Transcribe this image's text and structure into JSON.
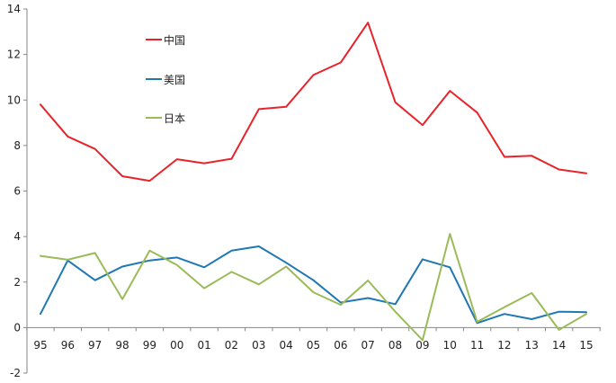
{
  "chart_data": {
    "type": "line",
    "title": "",
    "xlabel": "",
    "ylabel": "",
    "categories": [
      "95",
      "96",
      "97",
      "98",
      "99",
      "00",
      "01",
      "02",
      "03",
      "04",
      "05",
      "06",
      "07",
      "08",
      "09",
      "10",
      "11",
      "12",
      "13",
      "14",
      "15"
    ],
    "ylim": [
      -2,
      14
    ],
    "yticks": [
      -2,
      0,
      2,
      4,
      6,
      8,
      10,
      12,
      14
    ],
    "grid": false,
    "legend_position": "top-left inside",
    "series": [
      {
        "name": "中国",
        "color": "#E8232A",
        "values": [
          9.8,
          8.4,
          7.85,
          6.65,
          6.45,
          7.4,
          7.22,
          7.42,
          9.6,
          9.7,
          11.1,
          11.65,
          13.4,
          9.9,
          8.9,
          10.4,
          9.45,
          7.5,
          7.55,
          6.95,
          6.78
        ]
      },
      {
        "name": "美国",
        "color": "#1F77B4",
        "values": [
          0.6,
          2.95,
          2.08,
          2.68,
          2.95,
          3.08,
          2.65,
          3.38,
          3.57,
          2.85,
          2.08,
          1.1,
          1.3,
          1.03,
          3.0,
          2.65,
          0.2,
          0.6,
          0.37,
          0.7,
          0.68
        ]
      },
      {
        "name": "日本",
        "color": "#9BBB59",
        "values": [
          3.15,
          2.98,
          3.28,
          1.25,
          3.38,
          2.75,
          1.73,
          2.45,
          1.9,
          2.68,
          1.55,
          1.0,
          2.07,
          0.7,
          -0.55,
          4.12,
          0.25,
          0.9,
          1.52,
          -0.1,
          0.6
        ]
      }
    ]
  }
}
